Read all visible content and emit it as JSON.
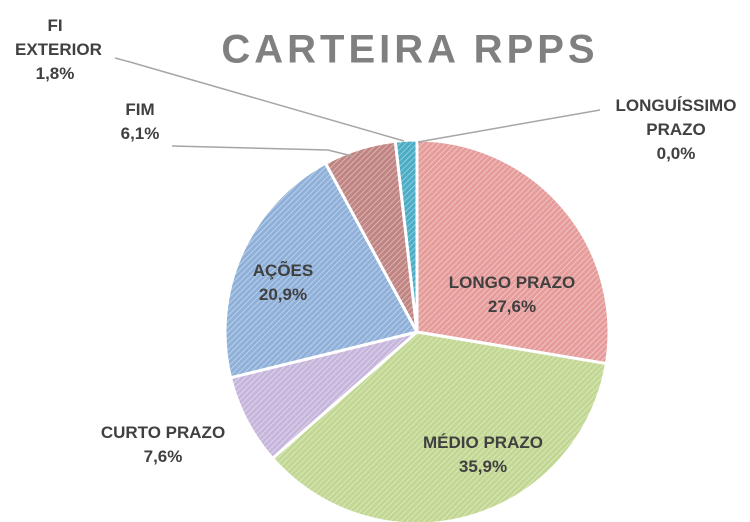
{
  "chart_data": {
    "type": "pie",
    "title": "CARTEIRA RPPS",
    "categories": [
      "LONGO PRAZO",
      "MÉDIO PRAZO",
      "CURTO PRAZO",
      "AÇÕES",
      "FIM",
      "FI EXTERIOR",
      "LONGUÍSSIMO PRAZO"
    ],
    "values": [
      27.6,
      35.9,
      7.6,
      20.9,
      6.1,
      1.8,
      0.0
    ],
    "value_labels": [
      "27,6%",
      "35,9%",
      "7,6%",
      "20,9%",
      "6,1%",
      "1,8%",
      "0,0%"
    ],
    "colors": [
      "#e59c9a",
      "#c2d792",
      "#c7b6dc",
      "#8fb0d8",
      "#c08482",
      "#4aacc5",
      "#f2a65a"
    ]
  }
}
